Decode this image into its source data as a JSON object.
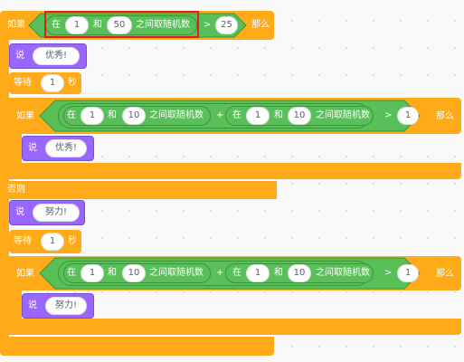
{
  "blocks": {
    "if": "如果",
    "then": "那么",
    "else": "否则",
    "say": "说",
    "wait": "等待",
    "seconds": "秒",
    "between": "在",
    "and": "和",
    "random": "之间取随机数",
    "gt": ">",
    "plus": "+"
  },
  "script": {
    "outer_if": {
      "min": "1",
      "max": "50",
      "threshold": "25"
    },
    "say_excellent_1": "优秀!",
    "wait_1": "1",
    "inner_if_1": {
      "a_min": "1",
      "a_max": "10",
      "b_min": "1",
      "b_max": "10",
      "threshold": "1"
    },
    "say_excellent_2": "优秀!",
    "say_effort_1": "努力!",
    "wait_2": "1",
    "inner_if_2": {
      "a_min": "1",
      "a_max": "10",
      "b_min": "1",
      "b_max": "10",
      "threshold": "1"
    },
    "say_effort_2": "努力!"
  },
  "colors": {
    "control": "#ffab19",
    "looks": "#9966ff",
    "operators": "#59c059",
    "highlight": "#e02020"
  }
}
